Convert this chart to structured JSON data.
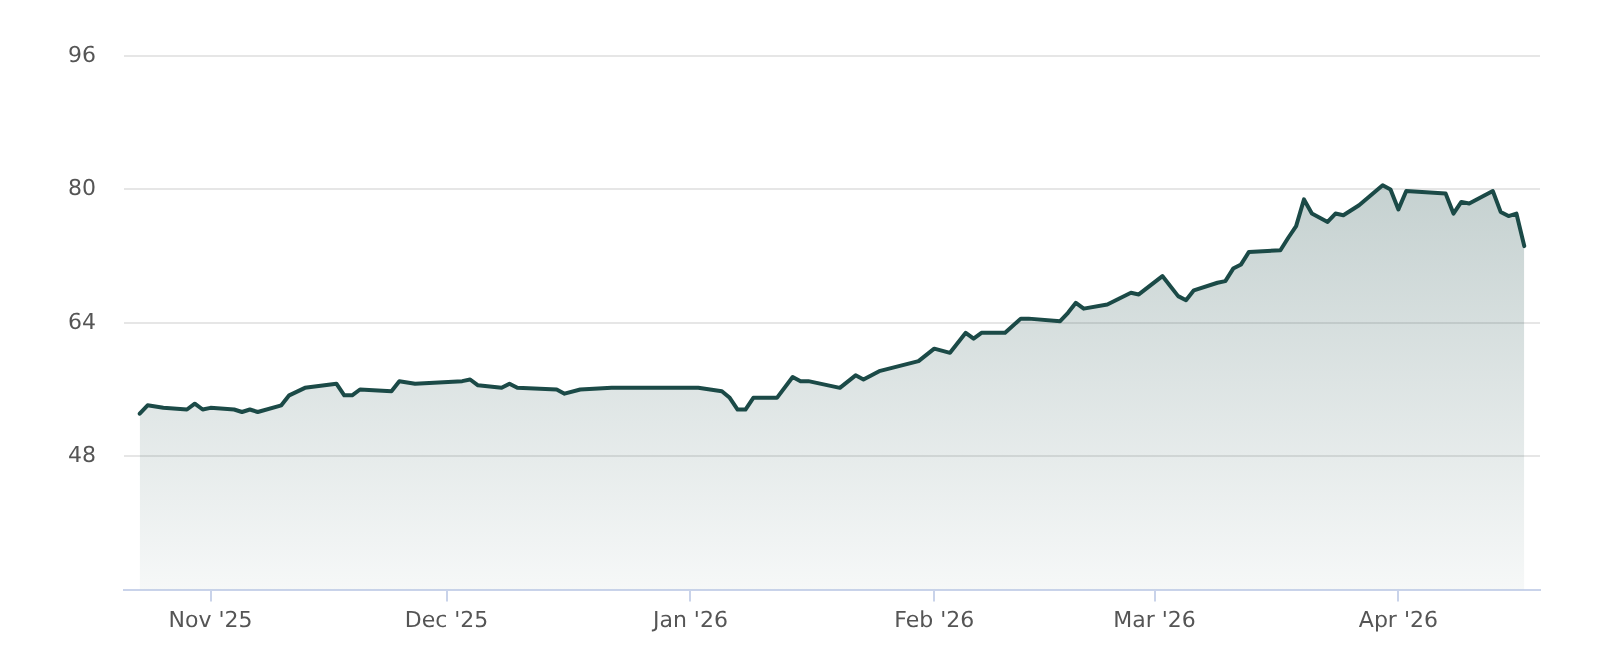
{
  "chart_data": {
    "type": "area",
    "grid": "y",
    "legend": false,
    "marker": "none",
    "line_style": "solid",
    "xlim": [
      "2025-10-21",
      "2026-04-19"
    ],
    "xticks": [
      {
        "value": "2025-11-01",
        "label": "Nov '25"
      },
      {
        "value": "2025-12-01",
        "label": "Dec '25"
      },
      {
        "value": "2026-01-01",
        "label": "Jan '26"
      },
      {
        "value": "2026-02-01",
        "label": "Feb '26"
      },
      {
        "value": "2026-03-01",
        "label": "Mar '26"
      },
      {
        "value": "2026-04-01",
        "label": "Apr '26"
      }
    ],
    "ylim": [
      32,
      96
    ],
    "yticks": [
      48,
      64,
      80,
      96
    ],
    "x": [
      "2025-10-23",
      "2025-10-24",
      "2025-10-26",
      "2025-10-29",
      "2025-10-30",
      "2025-10-31",
      "2025-11-01",
      "2025-11-04",
      "2025-11-05",
      "2025-11-06",
      "2025-11-07",
      "2025-11-10",
      "2025-11-11",
      "2025-11-13",
      "2025-11-17",
      "2025-11-18",
      "2025-11-19",
      "2025-11-20",
      "2025-11-24",
      "2025-11-25",
      "2025-11-27",
      "2025-12-03",
      "2025-12-04",
      "2025-12-05",
      "2025-12-08",
      "2025-12-09",
      "2025-12-10",
      "2025-12-15",
      "2025-12-16",
      "2025-12-18",
      "2025-12-22",
      "2025-12-23",
      "2026-01-02",
      "2026-01-05",
      "2026-01-06",
      "2026-01-07",
      "2026-01-08",
      "2026-01-09",
      "2026-01-12",
      "2026-01-14",
      "2026-01-15",
      "2026-01-16",
      "2026-01-20",
      "2026-01-22",
      "2026-01-23",
      "2026-01-25",
      "2026-01-30",
      "2026-02-01",
      "2026-02-03",
      "2026-02-05",
      "2026-02-06",
      "2026-02-07",
      "2026-02-10",
      "2026-02-12",
      "2026-02-13",
      "2026-02-17",
      "2026-02-18",
      "2026-02-19",
      "2026-02-20",
      "2026-02-23",
      "2026-02-26",
      "2026-02-27",
      "2026-03-02",
      "2026-03-04",
      "2026-03-05",
      "2026-03-06",
      "2026-03-09",
      "2026-03-10",
      "2026-03-11",
      "2026-03-12",
      "2026-03-13",
      "2026-03-17",
      "2026-03-18",
      "2026-03-19",
      "2026-03-20",
      "2026-03-21",
      "2026-03-23",
      "2026-03-24",
      "2026-03-25",
      "2026-03-27",
      "2026-03-30",
      "2026-03-31",
      "2026-04-01",
      "2026-04-02",
      "2026-04-07",
      "2026-04-08",
      "2026-04-09",
      "2026-04-10",
      "2026-04-13",
      "2026-04-14",
      "2026-04-15",
      "2026-04-16",
      "2026-04-17"
    ],
    "series": [
      {
        "color": "#1b4a47",
        "values": [
          53.1,
          54.1,
          53.8,
          53.6,
          54.3,
          53.6,
          53.8,
          53.6,
          53.3,
          53.6,
          53.3,
          54.1,
          55.3,
          56.2,
          56.7,
          55.3,
          55.3,
          56.0,
          55.8,
          57.0,
          56.7,
          57.0,
          57.2,
          56.5,
          56.2,
          56.7,
          56.2,
          56.0,
          55.5,
          56.0,
          56.2,
          56.2,
          56.2,
          55.8,
          55.0,
          53.6,
          53.6,
          55.0,
          55.0,
          57.5,
          57.0,
          57.0,
          56.2,
          57.7,
          57.2,
          58.2,
          59.4,
          60.9,
          60.4,
          62.8,
          62.1,
          62.8,
          62.8,
          64.5,
          64.5,
          64.2,
          65.2,
          66.4,
          65.7,
          66.2,
          67.6,
          67.4,
          69.6,
          67.2,
          66.7,
          67.9,
          68.8,
          69.0,
          70.5,
          71.0,
          72.5,
          72.7,
          74.2,
          75.6,
          78.8,
          77.1,
          76.1,
          77.1,
          76.9,
          78.1,
          80.5,
          80.0,
          77.6,
          79.8,
          79.5,
          77.1,
          78.5,
          78.3,
          79.8,
          77.3,
          76.8,
          77.1,
          73.2
        ]
      }
    ]
  }
}
